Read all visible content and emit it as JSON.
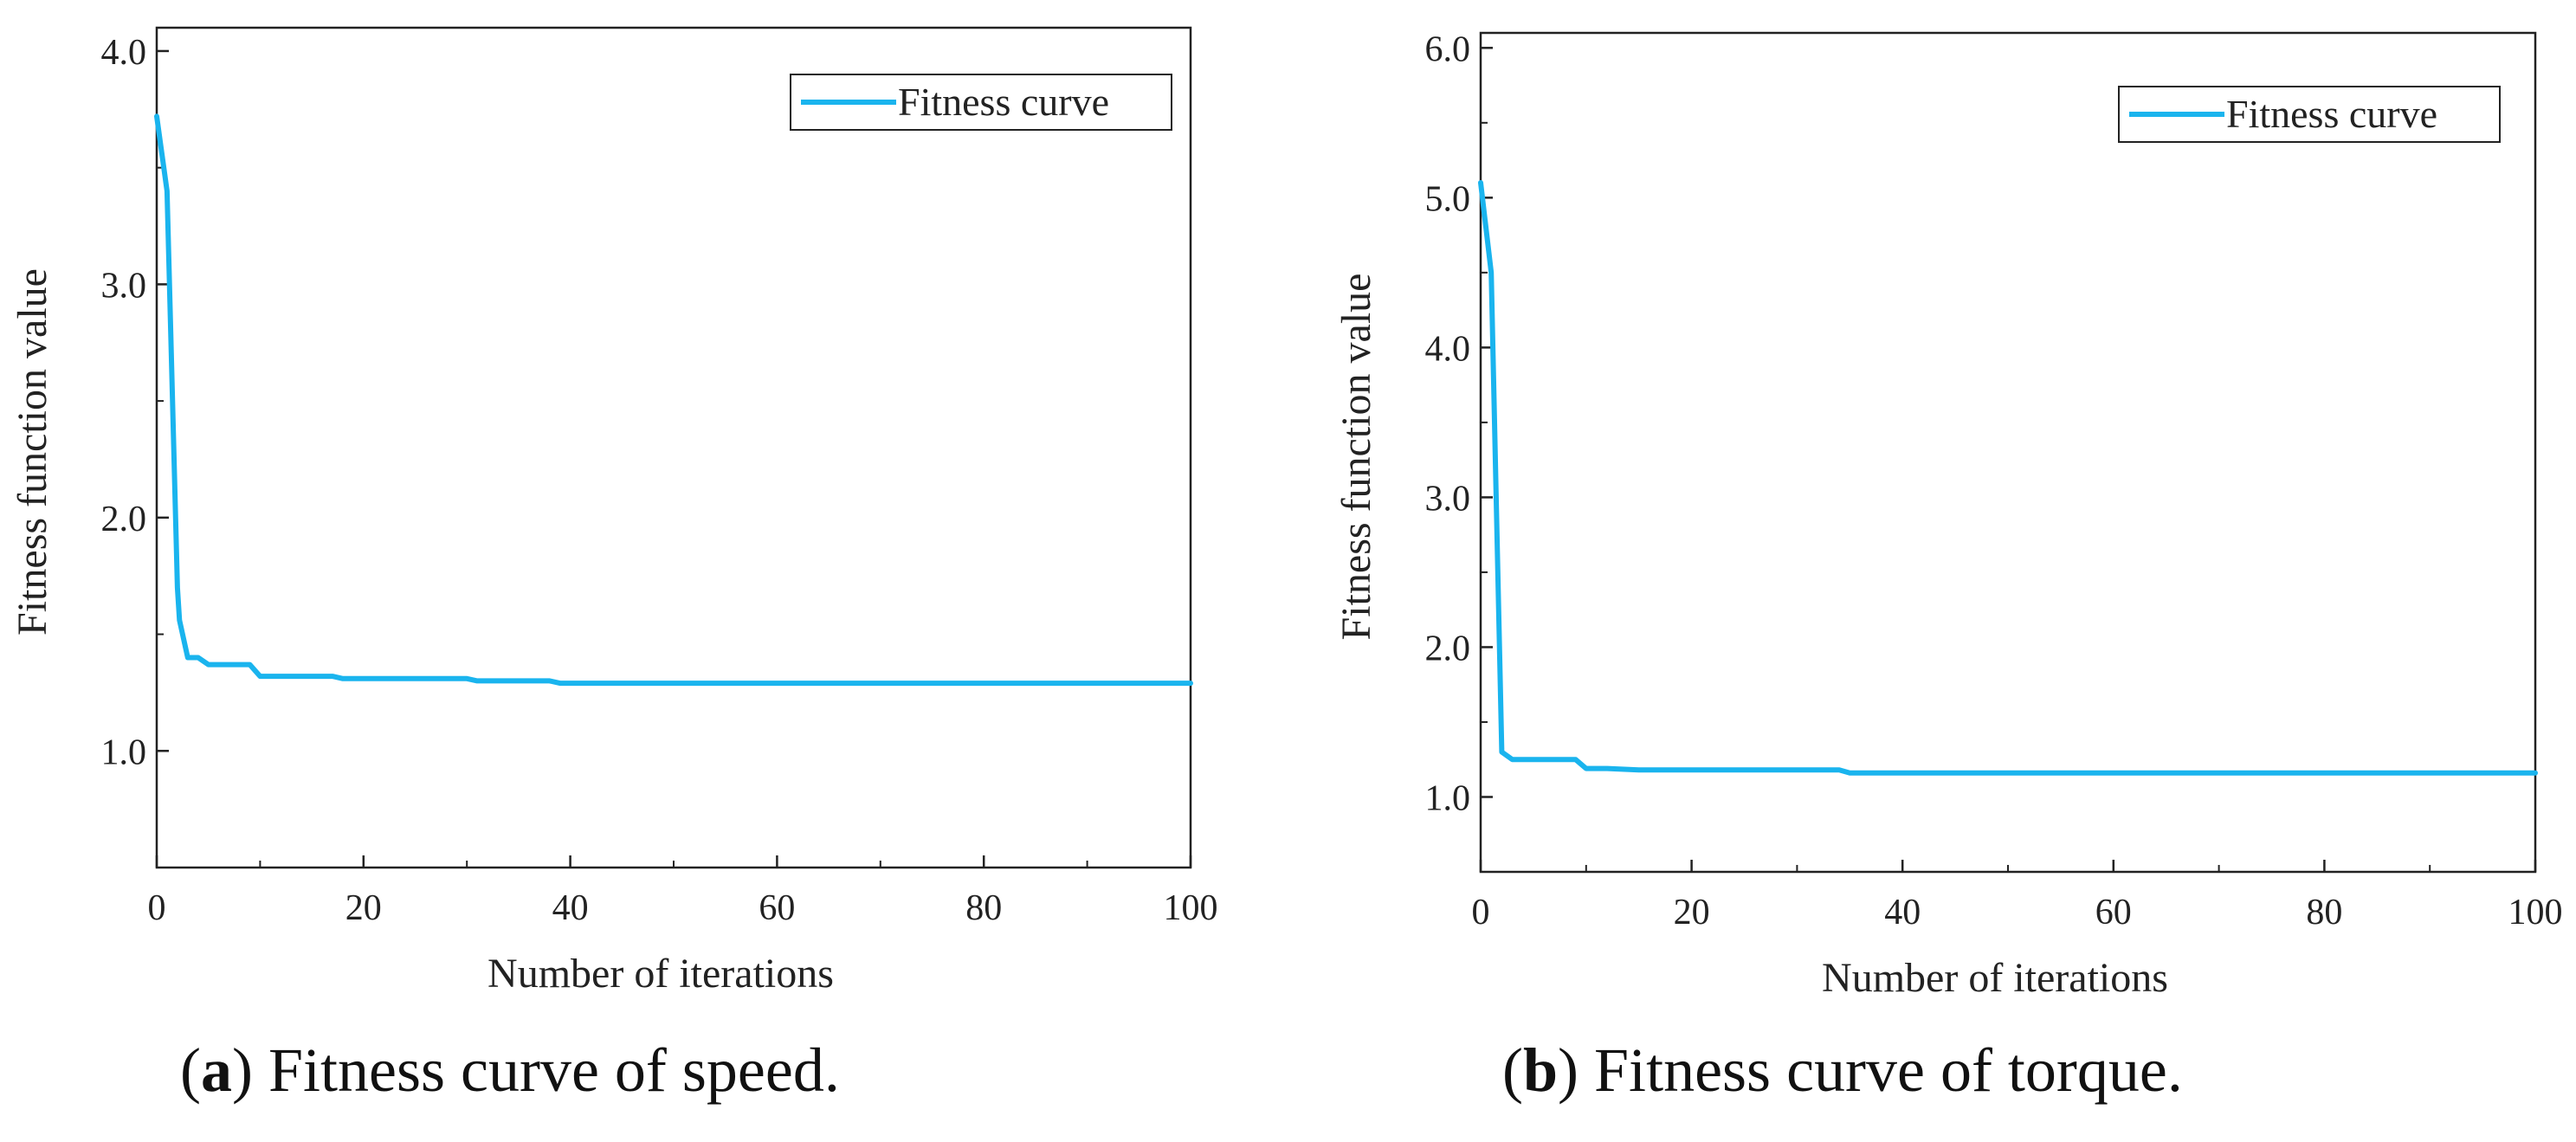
{
  "colors": {
    "series": "#1ab4ee",
    "axis": "#222222"
  },
  "chart_data": [
    {
      "type": "line",
      "caption_letter": "a",
      "caption_text": "Fitness curve of speed.",
      "xlabel": "Number of iterations",
      "ylabel": "Fitness function value",
      "xlim": [
        0,
        100
      ],
      "ylim": [
        0.5,
        4.1
      ],
      "xticks": [
        0,
        20,
        40,
        60,
        80,
        100
      ],
      "xtick_labels": [
        "0",
        "20",
        "40",
        "60",
        "80",
        "100"
      ],
      "yticks": [
        1.0,
        2.0,
        3.0,
        4.0
      ],
      "ytick_labels": [
        "1.0",
        "2.0",
        "3.0",
        "4.0"
      ],
      "legend": "top-right",
      "grid": false,
      "series": [
        {
          "name": "Fitness curve",
          "x": [
            0,
            1,
            2,
            2.2,
            3,
            4,
            5,
            6,
            7,
            8,
            9,
            10,
            12,
            15,
            17,
            18,
            20,
            25,
            30,
            31,
            35,
            38,
            39,
            40,
            50,
            60,
            70,
            80,
            90,
            100
          ],
          "y": [
            3.72,
            3.4,
            1.7,
            1.56,
            1.4,
            1.4,
            1.37,
            1.37,
            1.37,
            1.37,
            1.37,
            1.32,
            1.32,
            1.32,
            1.32,
            1.31,
            1.31,
            1.31,
            1.31,
            1.3,
            1.3,
            1.3,
            1.29,
            1.29,
            1.29,
            1.29,
            1.29,
            1.29,
            1.29,
            1.29
          ]
        }
      ]
    },
    {
      "type": "line",
      "caption_letter": "b",
      "caption_text": "Fitness curve of torque.",
      "xlabel": "Number of iterations",
      "ylabel": "Fitness function value",
      "xlim": [
        0,
        100
      ],
      "ylim": [
        0.5,
        6.1
      ],
      "xticks": [
        0,
        20,
        40,
        60,
        80,
        100
      ],
      "xtick_labels": [
        "0",
        "20",
        "40",
        "60",
        "80",
        "100"
      ],
      "yticks": [
        1.0,
        2.0,
        3.0,
        4.0,
        5.0,
        6.0
      ],
      "ytick_labels": [
        "1.0",
        "2.0",
        "3.0",
        "4.0",
        "5.0",
        "6.0"
      ],
      "legend": "top-right",
      "grid": false,
      "series": [
        {
          "name": "Fitness curve",
          "x": [
            0,
            1,
            2,
            3,
            4,
            5,
            6,
            7,
            8,
            9,
            10,
            12,
            15,
            20,
            25,
            30,
            34,
            35,
            36,
            40,
            50,
            60,
            70,
            80,
            90,
            100
          ],
          "y": [
            5.1,
            4.5,
            1.3,
            1.25,
            1.25,
            1.25,
            1.25,
            1.25,
            1.25,
            1.25,
            1.19,
            1.19,
            1.18,
            1.18,
            1.18,
            1.18,
            1.18,
            1.16,
            1.16,
            1.16,
            1.16,
            1.16,
            1.16,
            1.16,
            1.16,
            1.16
          ]
        }
      ]
    }
  ]
}
